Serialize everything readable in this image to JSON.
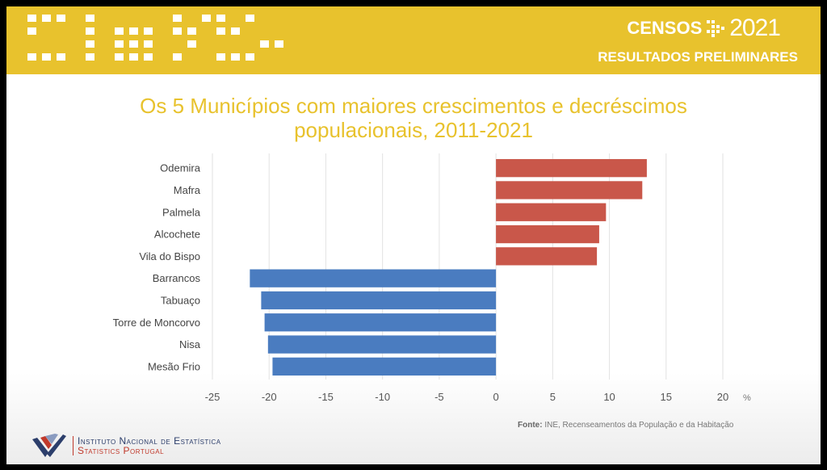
{
  "header": {
    "brand": "CENSOS",
    "year": "2021",
    "subtitle": "RESULTADOS PRELIMINARES",
    "accent": "#e8c22d"
  },
  "chart_data": {
    "type": "bar",
    "orientation": "horizontal",
    "title": "Os 5 Municípios com maiores crescimentos e decréscimos populacionais, 2011-2021",
    "title_lines": [
      "Os 5 Municípios com maiores crescimentos e decréscimos",
      "populacionais, 2011-2021"
    ],
    "categories": [
      "Odemira",
      "Mafra",
      "Palmela",
      "Alcochete",
      "Vila do Bispo",
      "Barrancos",
      "Tabuaço",
      "Torre de Moncorvo",
      "Nisa",
      "Mesão Frio"
    ],
    "values": [
      13.3,
      12.9,
      9.7,
      9.1,
      8.9,
      -21.7,
      -20.7,
      -20.4,
      -20.1,
      -19.7
    ],
    "positive_color": "#c9574a",
    "negative_color": "#4a7cc0",
    "xlim": [
      -25,
      20
    ],
    "xticks": [
      "-25",
      "-20",
      "-15",
      "-10",
      "-5",
      "0",
      "5",
      "10",
      "15",
      "20"
    ],
    "xunit": "%",
    "grid": true
  },
  "footer": {
    "source_label": "Fonte:",
    "source_text": " INE, Recenseamentos da População e da Habitação",
    "org_line1": "Instituto Nacional de Estatística",
    "org_line2": "Statistics Portugal"
  }
}
